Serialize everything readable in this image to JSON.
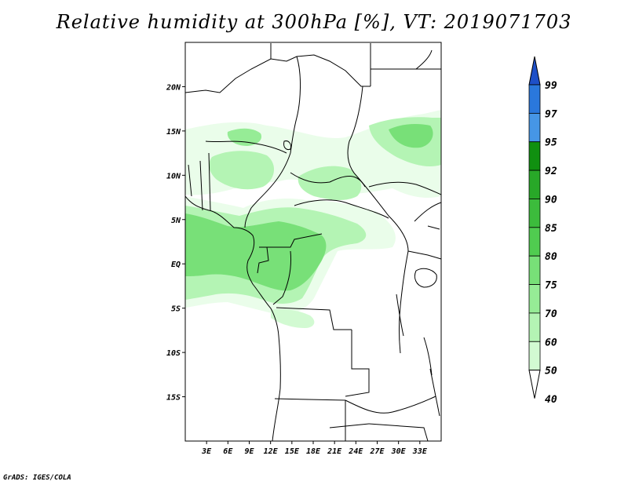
{
  "title": "Relative humidity at 300hPa [%], VT: 2019071703",
  "credit": "GrADS: IGES/COLA",
  "map": {
    "lon_range": [
      0,
      36
    ],
    "lat_range": [
      -20,
      25
    ],
    "lat_labels": [
      "20N",
      "15N",
      "10N",
      "5N",
      "EQ",
      "5S",
      "10S",
      "15S"
    ],
    "lon_labels": [
      "3E",
      "6E",
      "9E",
      "12E",
      "15E",
      "18E",
      "21E",
      "24E",
      "27E",
      "30E",
      "33E"
    ]
  },
  "legend": {
    "labels": [
      "99",
      "97",
      "95",
      "92",
      "90",
      "85",
      "80",
      "75",
      "70",
      "60",
      "50",
      "40"
    ],
    "colors": [
      "#1e50c8",
      "#2a78dc",
      "#4696e6",
      "#109010",
      "#28a828",
      "#3cbc3c",
      "#50cc50",
      "#78e078",
      "#96ec96",
      "#b4f4b4",
      "#d2fad2",
      "#eafdea"
    ]
  },
  "colors": {
    "rh_40": "#eafdea",
    "rh_50": "#d2fad2",
    "rh_60": "#b4f4b4",
    "rh_70": "#96ec96",
    "rh_75": "#78e078"
  }
}
